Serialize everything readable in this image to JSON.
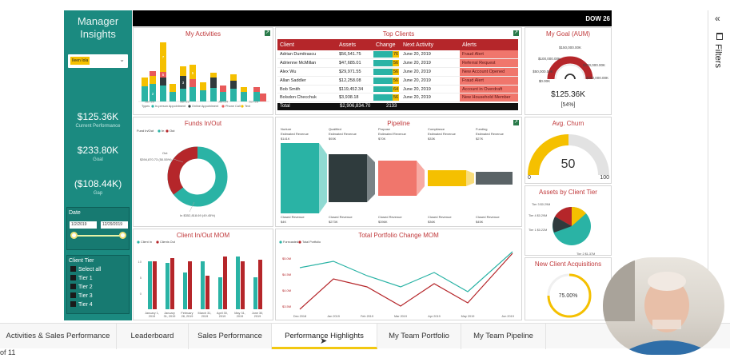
{
  "left_panel": {
    "title": "Manager Insights",
    "filter_chip": "Ileen Iola",
    "kpis": [
      {
        "value": "$125.36K",
        "label": "Current Performance"
      },
      {
        "value": "$233.80K",
        "label": "Goal"
      },
      {
        "value": "($108.44K)",
        "label": "Gap"
      }
    ],
    "date_label": "Date",
    "date_from": "1/2/2019",
    "date_to": "12/29/2019",
    "tier_label": "Client Tier",
    "tiers": [
      "Select all",
      "Tier 1",
      "Tier 2",
      "Tier 3",
      "Tier 4"
    ]
  },
  "banner": {
    "ticker": "DOW 26"
  },
  "panels": {
    "activities": {
      "title": "My Activities"
    },
    "clients": {
      "title": "Top Clients"
    },
    "goal": {
      "title": "My Goal (AUM)",
      "value": "$125.36K",
      "pct": "[54%]"
    },
    "funds": {
      "title": "Funds In/Out"
    },
    "pipeline": {
      "title": "Pipeline"
    },
    "churn": {
      "title": "Avg. Churn",
      "value": "50",
      "min": "0",
      "max": "100"
    },
    "tier": {
      "title": "Assets by Client Tier"
    },
    "inout": {
      "title": "Client In/Out MOM"
    },
    "portfolio": {
      "title": "Total Portfolio Change MOM"
    },
    "acq": {
      "title": "New Client Acquisitions",
      "value": "75.00%"
    }
  },
  "clients_table": {
    "headers": [
      "Client",
      "Assets",
      "Change",
      "Next Activity",
      "Alerts"
    ],
    "rows": [
      {
        "client": "Adrian Dumitrascu",
        "assets": "$56,541.75",
        "change": 76,
        "next": "June 20, 2019",
        "alert": "Fraud Alert"
      },
      {
        "client": "Adrienne McMillan",
        "assets": "$47,685.01",
        "change": 56,
        "next": "June 20, 2019",
        "alert": "Referral Request"
      },
      {
        "client": "Alex Wu",
        "assets": "$29,971.55",
        "change": 56,
        "next": "June 20, 2019",
        "alert": "New Account Opened"
      },
      {
        "client": "Allan Saddler",
        "assets": "$12,258.08",
        "change": 56,
        "next": "June 20, 2019",
        "alert": "Fraud Alert"
      },
      {
        "client": "Bob Smith",
        "assets": "$119,452.34",
        "change": 64,
        "next": "June 20, 2019",
        "alert": "Account in Overdraft"
      },
      {
        "client": "Bolsdon Checchuk",
        "assets": "$3,938.18",
        "change": 56,
        "next": "June 20, 2019",
        "alert": "New Household Member"
      }
    ],
    "total_label": "Total",
    "total_assets": "$2,906,834.70",
    "total_change": "2133"
  },
  "tabs": [
    "Activities & Sales Performance",
    "Leaderboard",
    "Sales Performance",
    "Performance Highlights",
    "My Team Portfolio",
    "My Team Pipeline"
  ],
  "active_tab": "Performance Highlights",
  "page_indicator": "of 11",
  "filters_label": "Filters",
  "colors": {
    "teal": "#1b8a80",
    "red": "#c0393b",
    "yellow": "#f5c000",
    "dark": "#2f3b3d"
  }
}
